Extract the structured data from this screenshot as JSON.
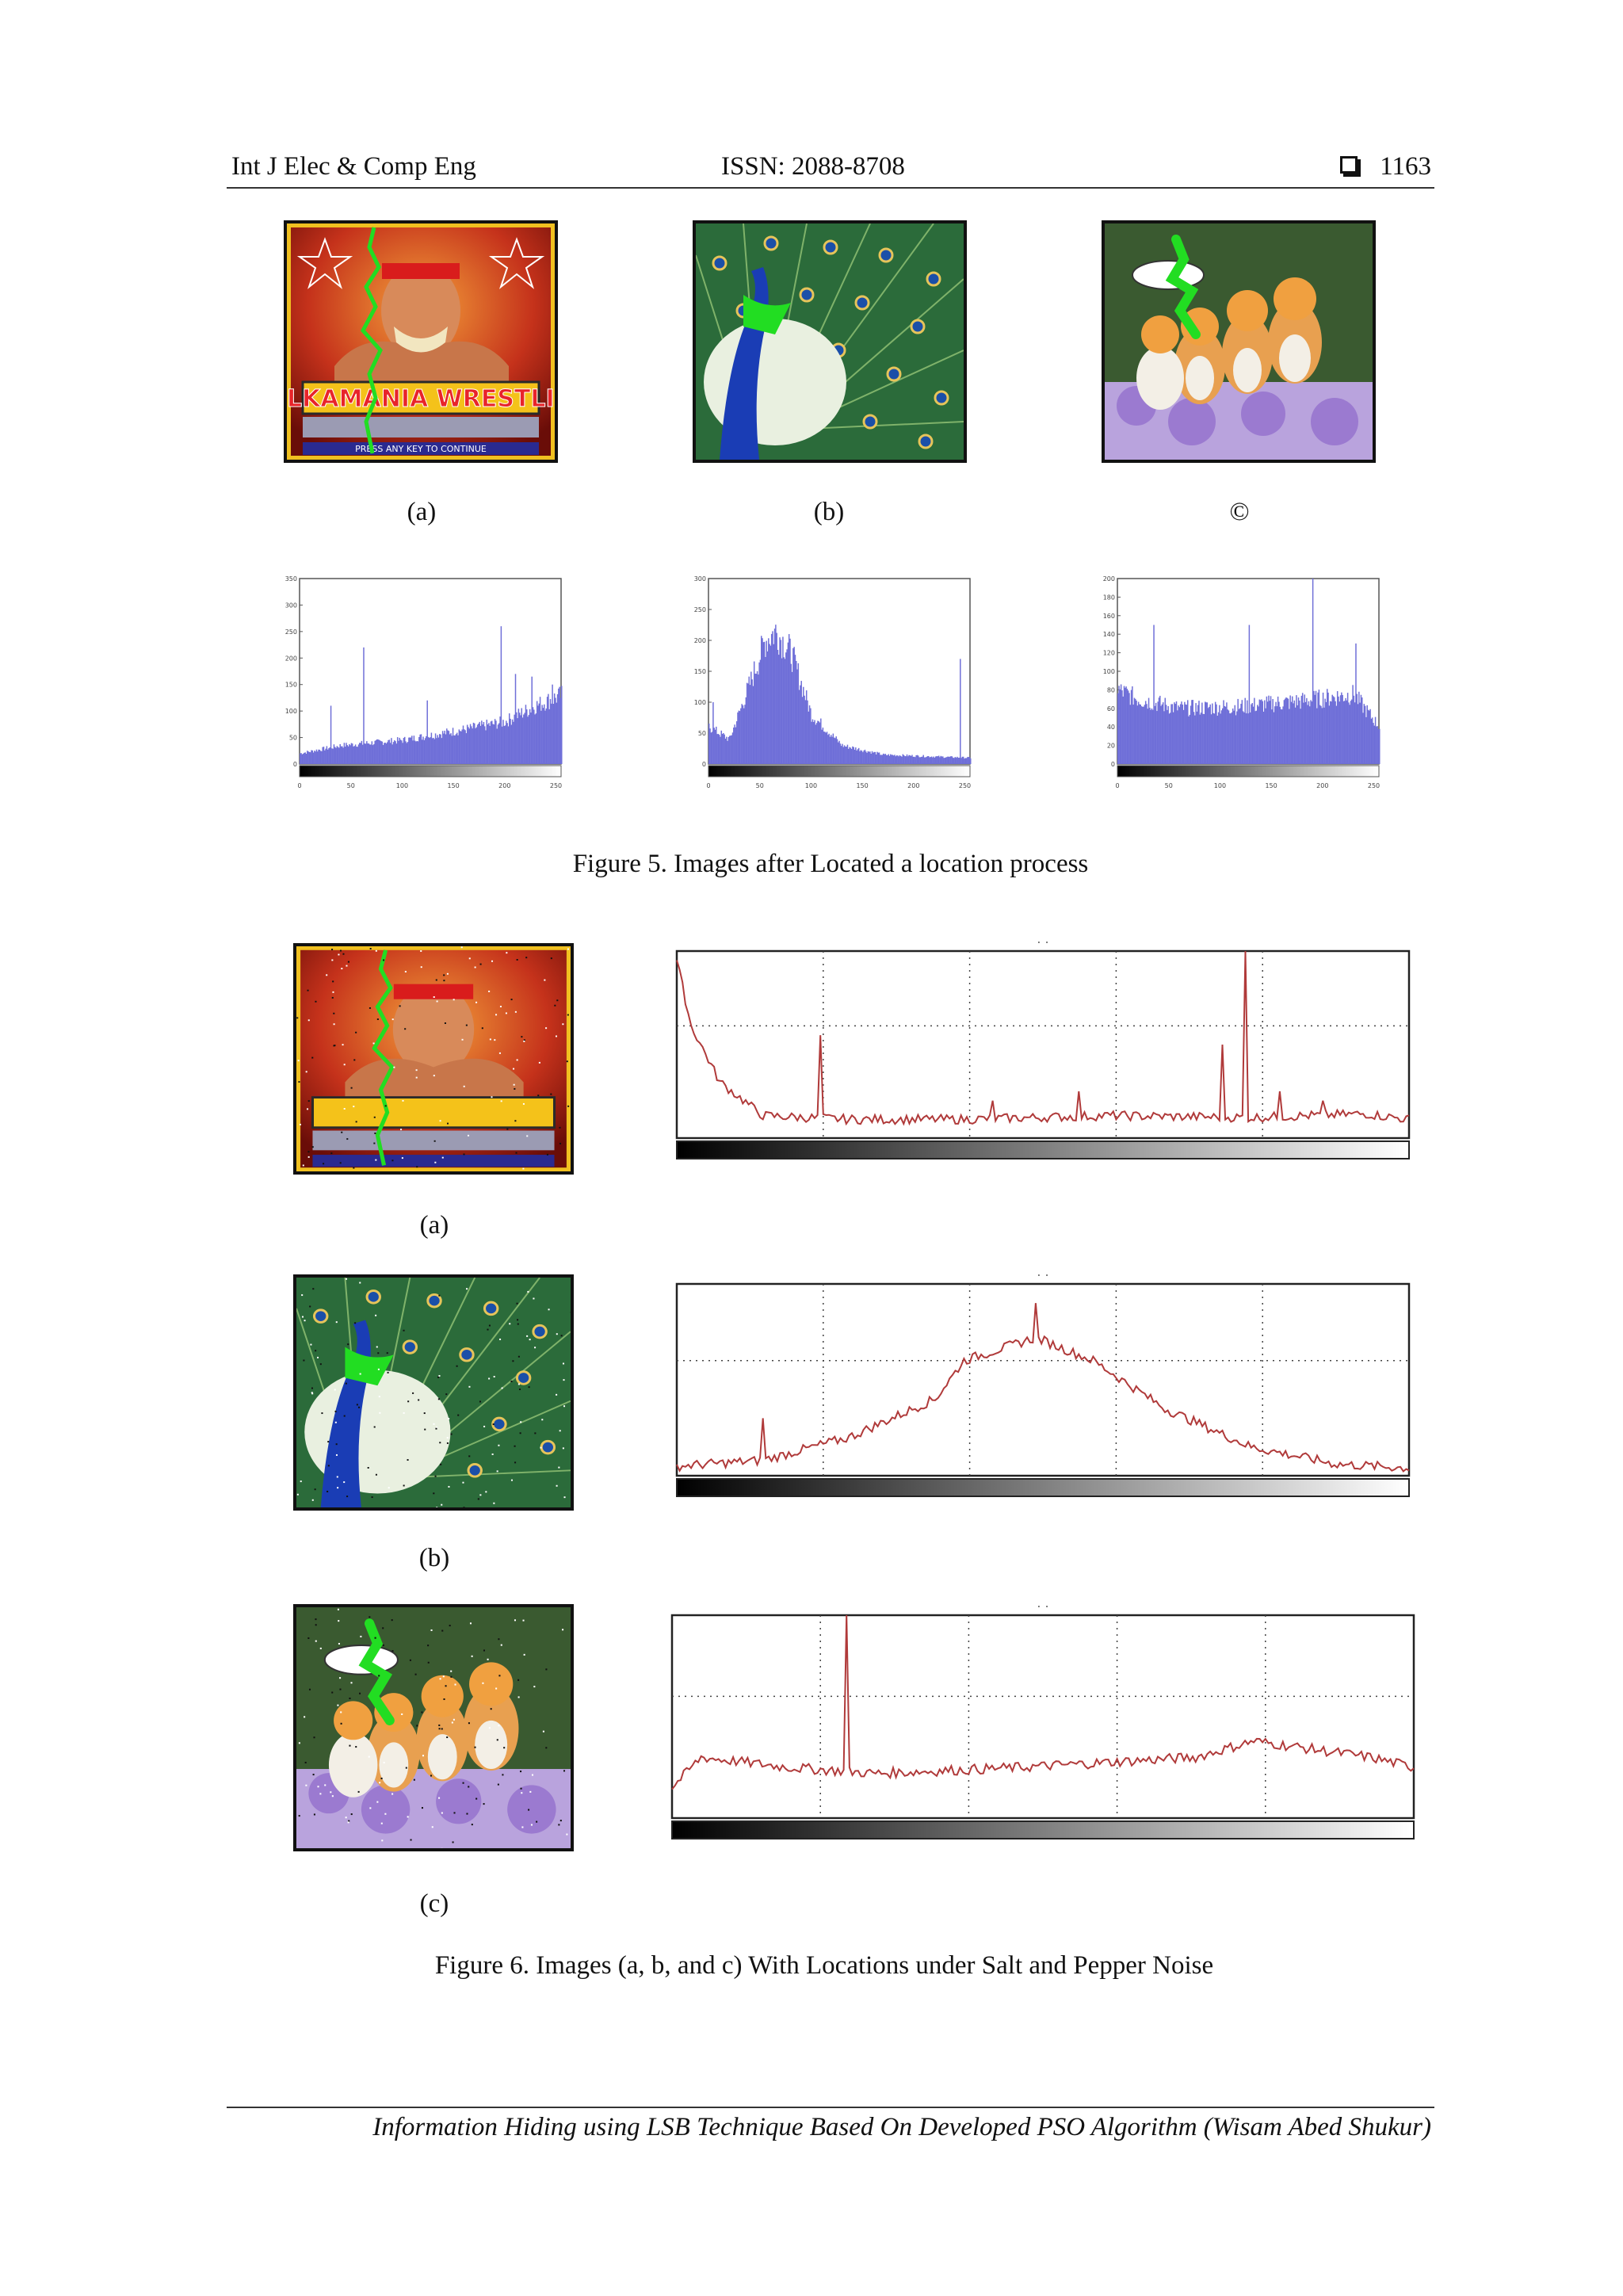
{
  "header": {
    "journal": "Int J Elec & Comp Eng",
    "issn": "ISSN: 2088-8708",
    "page": "1163"
  },
  "figure5": {
    "caption": "Figure 5. Images after Located a location process",
    "labels": [
      "(a)",
      "(b)",
      "©"
    ],
    "images": [
      {
        "subject": "wrestling poster",
        "overlay_text": "HULKAMANIA WRESTLING",
        "bottom_text": "PRESS ANY KEY TO CONTINUE"
      },
      {
        "subject": "peacock"
      },
      {
        "subject": "kittens"
      }
    ]
  },
  "figure6": {
    "caption": "Figure 6. Images (a, b, and c) With Locations under Salt and Pepper Noise",
    "labels": [
      "(a)",
      "(b)",
      "(c)"
    ],
    "plot_marker": ". ."
  },
  "footer": {
    "text": "Information Hiding using LSB Technique Based On Developed PSO Algorithm (Wisam Abed Shukur)"
  },
  "colors": {
    "histogram_bar": "#6f6fd8",
    "noise_line": "#b03a3a",
    "location_path": "#22dd22"
  },
  "chart_data": [
    {
      "type": "bar",
      "title": "",
      "xlabel": "",
      "ylabel": "",
      "xlim": [
        0,
        255
      ],
      "ylim": [
        0,
        350
      ],
      "x_ticks": [
        "0",
        "50",
        "100",
        "150",
        "200",
        "250"
      ],
      "y_ticks": [
        "0",
        "50",
        "100",
        "150",
        "200",
        "250",
        "300",
        "350"
      ],
      "shape": "low flat values rising toward high intensities with isolated spikes",
      "spikes": [
        [
          30,
          110
        ],
        [
          62,
          220
        ],
        [
          124,
          120
        ],
        [
          196,
          260
        ],
        [
          210,
          170
        ],
        [
          226,
          165
        ],
        [
          246,
          150
        ]
      ],
      "profile": [
        [
          0,
          20
        ],
        [
          40,
          35
        ],
        [
          100,
          45
        ],
        [
          160,
          65
        ],
        [
          200,
          80
        ],
        [
          230,
          110
        ],
        [
          255,
          130
        ]
      ]
    },
    {
      "type": "bar",
      "title": "",
      "xlabel": "",
      "ylabel": "",
      "xlim": [
        0,
        255
      ],
      "ylim": [
        0,
        300
      ],
      "x_ticks": [
        "0",
        "50",
        "100",
        "150",
        "200",
        "250"
      ],
      "y_ticks": [
        "0",
        "50",
        "100",
        "150",
        "200",
        "250",
        "300"
      ],
      "shape": "single peak near 65 then long tail",
      "spikes": [
        [
          4,
          100
        ],
        [
          245,
          170
        ]
      ],
      "profile": [
        [
          0,
          60
        ],
        [
          20,
          40
        ],
        [
          40,
          130
        ],
        [
          55,
          200
        ],
        [
          65,
          215
        ],
        [
          80,
          180
        ],
        [
          100,
          80
        ],
        [
          130,
          30
        ],
        [
          170,
          15
        ],
        [
          255,
          10
        ]
      ]
    },
    {
      "type": "bar",
      "title": "",
      "xlabel": "",
      "ylabel": "",
      "xlim": [
        0,
        255
      ],
      "ylim": [
        0,
        200
      ],
      "x_ticks": [
        "0",
        "50",
        "100",
        "150",
        "200",
        "250"
      ],
      "y_ticks": [
        "0",
        "20",
        "40",
        "60",
        "80",
        "100",
        "120",
        "140",
        "160",
        "180",
        "200"
      ],
      "shape": "fairly flat distribution around 70 with a few tall spikes",
      "spikes": [
        [
          35,
          150
        ],
        [
          128,
          150
        ],
        [
          190,
          200
        ],
        [
          232,
          130
        ]
      ],
      "profile": [
        [
          0,
          80
        ],
        [
          20,
          70
        ],
        [
          60,
          60
        ],
        [
          120,
          62
        ],
        [
          180,
          68
        ],
        [
          230,
          75
        ],
        [
          255,
          40
        ]
      ]
    },
    {
      "type": "line",
      "title": "",
      "xlabel": "",
      "ylabel": "",
      "shape": "noisy low baseline with sharp initial decay and isolated spikes",
      "points": [
        [
          0,
          0.95
        ],
        [
          5,
          0.6
        ],
        [
          15,
          0.3
        ],
        [
          30,
          0.12
        ],
        [
          60,
          0.1
        ],
        [
          100,
          0.1
        ],
        [
          150,
          0.12
        ],
        [
          200,
          0.11
        ],
        [
          240,
          0.13
        ],
        [
          255,
          0.1
        ]
      ],
      "spikes": [
        [
          50,
          0.55
        ],
        [
          110,
          0.2
        ],
        [
          140,
          0.25
        ],
        [
          190,
          0.5
        ],
        [
          198,
          1.0
        ],
        [
          210,
          0.25
        ],
        [
          225,
          0.2
        ]
      ]
    },
    {
      "type": "line",
      "title": "",
      "xlabel": "",
      "ylabel": "",
      "shape": "bell-shaped curve peaking near the middle-left",
      "points": [
        [
          0,
          0.05
        ],
        [
          30,
          0.08
        ],
        [
          60,
          0.2
        ],
        [
          90,
          0.4
        ],
        [
          100,
          0.6
        ],
        [
          125,
          0.72
        ],
        [
          145,
          0.6
        ],
        [
          170,
          0.35
        ],
        [
          200,
          0.15
        ],
        [
          230,
          0.06
        ],
        [
          255,
          0.04
        ]
      ],
      "spikes": [
        [
          30,
          0.3
        ],
        [
          125,
          0.9
        ]
      ]
    },
    {
      "type": "line",
      "title": "",
      "xlabel": "",
      "ylabel": "",
      "shape": "flat noisy baseline with one full-height spike",
      "points": [
        [
          0,
          0.15
        ],
        [
          10,
          0.3
        ],
        [
          40,
          0.25
        ],
        [
          70,
          0.22
        ],
        [
          120,
          0.25
        ],
        [
          180,
          0.3
        ],
        [
          200,
          0.38
        ],
        [
          240,
          0.3
        ],
        [
          255,
          0.25
        ]
      ],
      "spikes": [
        [
          60,
          1.0
        ]
      ]
    }
  ]
}
